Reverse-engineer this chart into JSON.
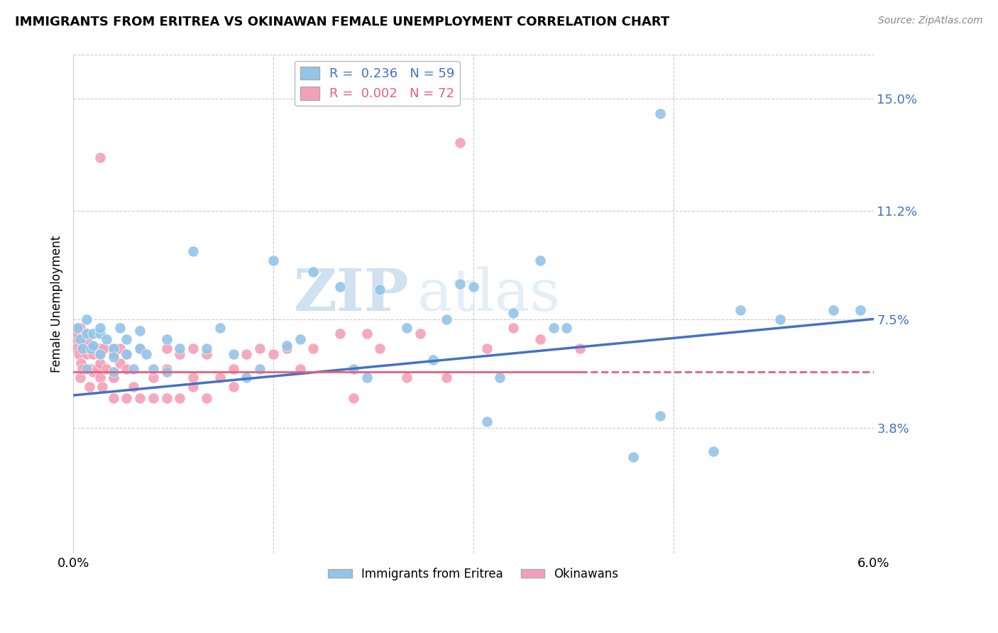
{
  "title": "IMMIGRANTS FROM ERITREA VS OKINAWAN FEMALE UNEMPLOYMENT CORRELATION CHART",
  "source": "Source: ZipAtlas.com",
  "ylabel": "Female Unemployment",
  "right_ytick_vals": [
    0.038,
    0.075,
    0.112,
    0.15
  ],
  "right_ytick_labels": [
    "3.8%",
    "7.5%",
    "11.2%",
    "15.0%"
  ],
  "legend_label_eritrea": "Immigrants from Eritrea",
  "legend_label_okinawa": "Okinawans",
  "color_eritrea": "#92C5E8",
  "color_okinawa": "#F4A0B8",
  "color_line_eritrea": "#4472C4",
  "color_line_okinawa": "#E8607A",
  "watermark_text": "ZIPatlas",
  "background_color": "#FFFFFF",
  "xmin": 0.0,
  "xmax": 0.06,
  "ymin": -0.005,
  "ymax": 0.165,
  "eritrea_scatter_x": [
    0.0003,
    0.0005,
    0.0007,
    0.001,
    0.001,
    0.001,
    0.0013,
    0.0015,
    0.0015,
    0.002,
    0.002,
    0.002,
    0.0025,
    0.003,
    0.003,
    0.003,
    0.0035,
    0.004,
    0.004,
    0.0045,
    0.005,
    0.005,
    0.0055,
    0.006,
    0.007,
    0.007,
    0.008,
    0.009,
    0.01,
    0.011,
    0.012,
    0.013,
    0.014,
    0.015,
    0.016,
    0.017,
    0.018,
    0.02,
    0.021,
    0.022,
    0.023,
    0.025,
    0.027,
    0.028,
    0.029,
    0.03,
    0.031,
    0.032,
    0.033,
    0.035,
    0.036,
    0.037,
    0.042,
    0.044,
    0.048,
    0.05,
    0.053,
    0.057,
    0.059
  ],
  "eritrea_scatter_y": [
    0.072,
    0.068,
    0.065,
    0.07,
    0.075,
    0.058,
    0.065,
    0.07,
    0.066,
    0.07,
    0.063,
    0.072,
    0.068,
    0.065,
    0.057,
    0.062,
    0.072,
    0.063,
    0.068,
    0.058,
    0.065,
    0.071,
    0.063,
    0.058,
    0.068,
    0.057,
    0.065,
    0.098,
    0.065,
    0.072,
    0.063,
    0.055,
    0.058,
    0.095,
    0.066,
    0.068,
    0.091,
    0.086,
    0.058,
    0.055,
    0.085,
    0.072,
    0.061,
    0.075,
    0.087,
    0.086,
    0.04,
    0.055,
    0.077,
    0.095,
    0.072,
    0.072,
    0.028,
    0.042,
    0.03,
    0.078,
    0.075,
    0.078,
    0.078
  ],
  "okinawa_scatter_x": [
    0.0001,
    0.0002,
    0.0003,
    0.0004,
    0.0005,
    0.0005,
    0.0006,
    0.0007,
    0.0008,
    0.001,
    0.001,
    0.001,
    0.001,
    0.0012,
    0.0013,
    0.0015,
    0.0015,
    0.0015,
    0.0018,
    0.002,
    0.002,
    0.002,
    0.002,
    0.0022,
    0.0023,
    0.0025,
    0.003,
    0.003,
    0.003,
    0.003,
    0.003,
    0.0035,
    0.0035,
    0.004,
    0.004,
    0.004,
    0.0045,
    0.005,
    0.005,
    0.006,
    0.006,
    0.007,
    0.007,
    0.007,
    0.008,
    0.008,
    0.009,
    0.009,
    0.009,
    0.01,
    0.01,
    0.011,
    0.012,
    0.012,
    0.013,
    0.014,
    0.015,
    0.016,
    0.017,
    0.018,
    0.02,
    0.021,
    0.022,
    0.023,
    0.025,
    0.026,
    0.028,
    0.029,
    0.031,
    0.033,
    0.035,
    0.038
  ],
  "okinawa_scatter_y": [
    0.068,
    0.065,
    0.07,
    0.063,
    0.072,
    0.055,
    0.06,
    0.058,
    0.065,
    0.063,
    0.065,
    0.068,
    0.07,
    0.052,
    0.058,
    0.065,
    0.063,
    0.057,
    0.058,
    0.055,
    0.06,
    0.065,
    0.063,
    0.052,
    0.065,
    0.058,
    0.055,
    0.063,
    0.065,
    0.055,
    0.048,
    0.06,
    0.065,
    0.048,
    0.058,
    0.063,
    0.052,
    0.065,
    0.048,
    0.048,
    0.055,
    0.048,
    0.058,
    0.065,
    0.048,
    0.063,
    0.052,
    0.055,
    0.065,
    0.048,
    0.063,
    0.055,
    0.058,
    0.052,
    0.063,
    0.065,
    0.063,
    0.065,
    0.058,
    0.065,
    0.07,
    0.048,
    0.07,
    0.065,
    0.055,
    0.07,
    0.055,
    0.135,
    0.065,
    0.072,
    0.068,
    0.065
  ],
  "okinawa_outlier_x": [
    0.002
  ],
  "okinawa_outlier_y": [
    0.13
  ],
  "eritrea_outlier_x": [
    0.044
  ],
  "eritrea_outlier_y": [
    0.145
  ]
}
